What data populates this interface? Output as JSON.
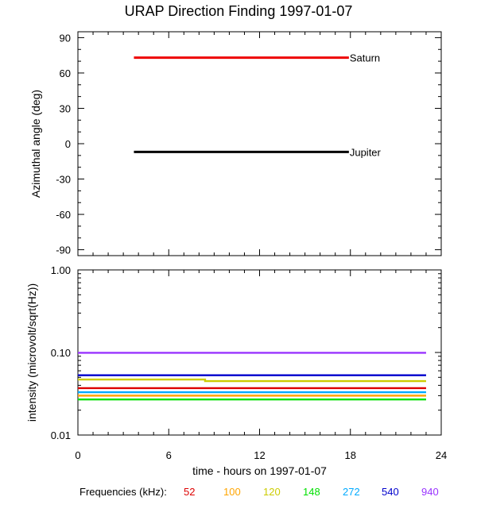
{
  "title": "URAP Direction Finding  1997-01-07",
  "legend_label": "Frequencies (kHz):",
  "colors": {
    "saturn": "#ee0000",
    "jupiter": "#000000",
    "f52": "#dd0000",
    "f100": "#ffa500",
    "f120": "#cccc00",
    "f148": "#00e000",
    "f272": "#00aaff",
    "f540": "#0000cc",
    "f940": "#9933ff"
  },
  "chart_data": [
    {
      "type": "line",
      "name": "azimuth-panel",
      "title": "URAP Direction Finding  1997-01-07",
      "xlabel": "time - hours on 1997-01-07",
      "ylabel": "Azimuthal angle (deg)",
      "xlim": [
        0,
        24
      ],
      "ylim": [
        -95,
        95
      ],
      "yticks": [
        90,
        60,
        30,
        0,
        -30,
        -60,
        -90
      ],
      "ytick_labels": [
        "90",
        "60",
        "30",
        "0",
        "-30",
        "-60",
        "-90"
      ],
      "series": [
        {
          "name": "Saturn",
          "color_key": "saturn",
          "x": [
            3.7,
            17.9
          ],
          "y": [
            73,
            73
          ]
        },
        {
          "name": "Jupiter",
          "color_key": "jupiter",
          "x": [
            3.7,
            17.9
          ],
          "y": [
            -7,
            -7
          ]
        }
      ]
    },
    {
      "type": "line",
      "name": "intensity-panel",
      "xlabel": "time - hours on 1997-01-07",
      "ylabel": "intensity (microvolt/sqrt(Hz))",
      "xlim": [
        0,
        24
      ],
      "ylim": [
        0.01,
        1.0
      ],
      "yscale": "log",
      "xticks": [
        0,
        6,
        12,
        18,
        24
      ],
      "xtick_labels": [
        "0",
        "6",
        "12",
        "18",
        "24"
      ],
      "yticks": [
        1.0,
        0.1,
        0.01
      ],
      "ytick_labels": [
        "1.00",
        "0.10",
        "0.01"
      ],
      "series": [
        {
          "name": "52",
          "color_key": "f52",
          "x": [
            0,
            23
          ],
          "y": [
            0.037,
            0.037
          ]
        },
        {
          "name": "100",
          "color_key": "f100",
          "x": [
            0,
            23
          ],
          "y": [
            0.03,
            0.03
          ]
        },
        {
          "name": "120",
          "color_key": "f120",
          "x": [
            0,
            8.4,
            8.4,
            23
          ],
          "y": [
            0.047,
            0.047,
            0.045,
            0.045
          ]
        },
        {
          "name": "148",
          "color_key": "f148",
          "x": [
            0,
            23
          ],
          "y": [
            0.027,
            0.027
          ]
        },
        {
          "name": "272",
          "color_key": "f272",
          "x": [
            0,
            23
          ],
          "y": [
            0.033,
            0.033
          ]
        },
        {
          "name": "540",
          "color_key": "f540",
          "x": [
            0,
            23
          ],
          "y": [
            0.053,
            0.053
          ]
        },
        {
          "name": "940",
          "color_key": "f940",
          "x": [
            0,
            23
          ],
          "y": [
            0.099,
            0.099
          ]
        }
      ]
    }
  ],
  "legend": [
    {
      "label": "52",
      "color_key": "f52"
    },
    {
      "label": "100",
      "color_key": "f100"
    },
    {
      "label": "120",
      "color_key": "f120"
    },
    {
      "label": "148",
      "color_key": "f148"
    },
    {
      "label": "272",
      "color_key": "f272"
    },
    {
      "label": "540",
      "color_key": "f540"
    },
    {
      "label": "940",
      "color_key": "f940"
    }
  ]
}
